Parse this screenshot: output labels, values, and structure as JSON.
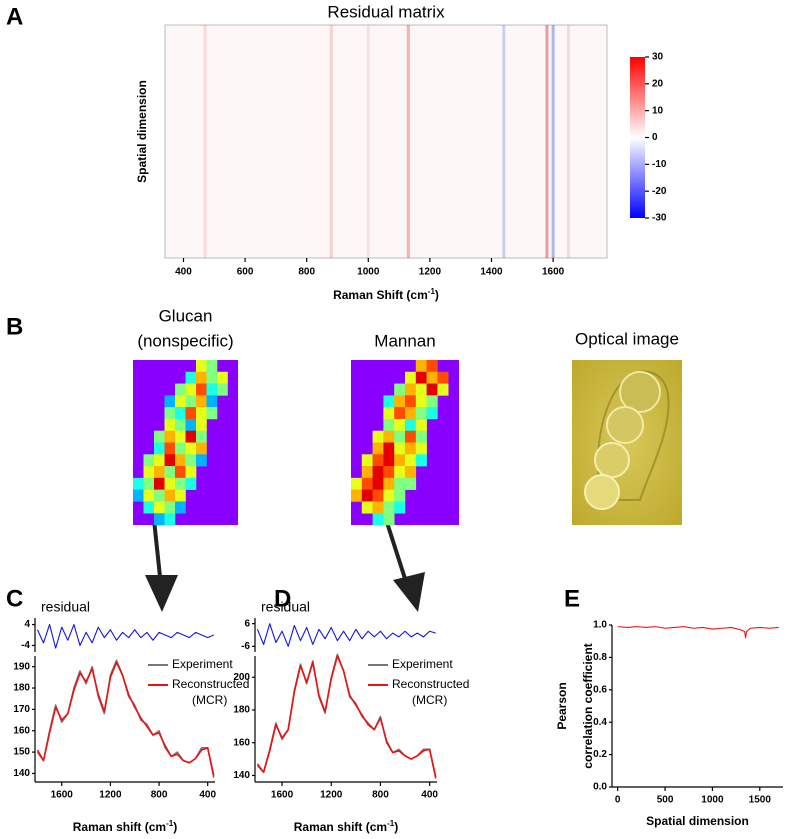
{
  "panel_labels": [
    "A",
    "B",
    "C",
    "D",
    "E"
  ],
  "optical_image": {
    "title": "Optical image"
  },
  "chart_data": [
    {
      "type": "heatmap",
      "title": "Residual matrix",
      "xlabel": [
        "Raman Shift (cm",
        "-1",
        ")"
      ],
      "ylabel": "Spatial dimension",
      "xlim": [
        340,
        1775
      ],
      "xticks": [
        400,
        600,
        800,
        1000,
        1200,
        1400,
        1600
      ],
      "x": [
        470,
        880,
        1000,
        1130,
        1440,
        1580,
        1600,
        1650
      ],
      "values": [
        4,
        5,
        3,
        9,
        -6,
        12,
        -10,
        4
      ],
      "colorbar_lim": [
        -30,
        30
      ],
      "colorbar_ticks": [
        30,
        20,
        10,
        0,
        -10,
        -20,
        -30
      ]
    },
    {
      "type": "pixelmap",
      "title_lines": [
        "Glucan",
        "(nonspecific)"
      ],
      "background": "#8a00ff",
      "values": [
        [
          null,
          null,
          null,
          null,
          null,
          null,
          0.6,
          0.5,
          null,
          null
        ],
        [
          null,
          null,
          null,
          null,
          null,
          0.4,
          0.7,
          0.5,
          0.6,
          null
        ],
        [
          null,
          null,
          null,
          null,
          0.5,
          0.6,
          0.8,
          0.4,
          0.5,
          null
        ],
        [
          null,
          null,
          null,
          0.3,
          0.6,
          0.5,
          0.7,
          0.3,
          null,
          null
        ],
        [
          null,
          null,
          null,
          0.5,
          0.4,
          0.8,
          0.6,
          0.5,
          null,
          null
        ],
        [
          null,
          null,
          null,
          0.6,
          0.5,
          0.3,
          0.6,
          null,
          null,
          null
        ],
        [
          null,
          null,
          0.5,
          0.7,
          0.6,
          0.9,
          0.5,
          null,
          null,
          null
        ],
        [
          null,
          null,
          0.4,
          0.8,
          0.5,
          0.6,
          0.7,
          null,
          null,
          null
        ],
        [
          null,
          0.5,
          0.6,
          0.9,
          0.7,
          0.5,
          0.3,
          null,
          null,
          null
        ],
        [
          null,
          0.6,
          0.7,
          0.5,
          0.8,
          0.6,
          null,
          null,
          null,
          null
        ],
        [
          0.4,
          0.5,
          0.9,
          0.6,
          0.5,
          0.4,
          null,
          null,
          null,
          null
        ],
        [
          0.3,
          0.6,
          0.5,
          0.7,
          0.6,
          null,
          null,
          null,
          null,
          null
        ],
        [
          null,
          0.4,
          0.6,
          0.5,
          0.3,
          null,
          null,
          null,
          null,
          null
        ],
        [
          null,
          null,
          0.3,
          0.4,
          null,
          null,
          null,
          null,
          null,
          null
        ]
      ]
    },
    {
      "type": "pixelmap",
      "title_lines": [
        "Mannan"
      ],
      "background": "#8a00ff",
      "values": [
        [
          null,
          null,
          null,
          null,
          null,
          null,
          0.7,
          0.8,
          null,
          null
        ],
        [
          null,
          null,
          null,
          null,
          null,
          0.6,
          0.9,
          0.7,
          0.8,
          null
        ],
        [
          null,
          null,
          null,
          null,
          0.5,
          0.7,
          0.6,
          0.9,
          0.6,
          null
        ],
        [
          null,
          null,
          null,
          0.4,
          0.7,
          0.8,
          0.6,
          0.5,
          null,
          null
        ],
        [
          null,
          null,
          null,
          0.6,
          0.8,
          0.7,
          0.5,
          0.4,
          null,
          null
        ],
        [
          null,
          null,
          null,
          0.5,
          0.6,
          0.4,
          0.6,
          null,
          null,
          null
        ],
        [
          null,
          null,
          0.6,
          0.7,
          0.5,
          0.8,
          0.5,
          null,
          null,
          null
        ],
        [
          null,
          null,
          0.7,
          0.9,
          0.6,
          0.7,
          0.6,
          null,
          null,
          null
        ],
        [
          null,
          0.6,
          0.8,
          0.9,
          0.7,
          0.6,
          0.4,
          null,
          null,
          null
        ],
        [
          null,
          0.7,
          0.9,
          0.8,
          0.6,
          0.7,
          null,
          null,
          null,
          null
        ],
        [
          0.6,
          0.8,
          0.9,
          0.7,
          0.5,
          0.5,
          null,
          null,
          null,
          null
        ],
        [
          0.7,
          0.9,
          0.8,
          0.6,
          0.5,
          null,
          null,
          null,
          null,
          null
        ],
        [
          null,
          0.6,
          0.7,
          0.5,
          0.4,
          null,
          null,
          null,
          null,
          null
        ],
        [
          null,
          null,
          0.4,
          0.5,
          null,
          null,
          null,
          null,
          null,
          null
        ]
      ]
    },
    {
      "type": "line",
      "title": "residual",
      "xlim": [
        1820,
        340
      ],
      "ylim": [
        -6.5,
        6.5
      ],
      "yticks": [
        4,
        -4
      ],
      "x": [
        1800,
        1750,
        1700,
        1650,
        1600,
        1550,
        1500,
        1450,
        1400,
        1350,
        1300,
        1250,
        1200,
        1150,
        1100,
        1050,
        1000,
        950,
        900,
        850,
        800,
        750,
        700,
        650,
        600,
        550,
        500,
        450,
        400,
        350
      ],
      "series": [
        {
          "color": "#1414e6",
          "values": [
            2,
            -3,
            4,
            -5,
            3,
            -2,
            4,
            -4,
            1,
            -3,
            3,
            -1,
            2,
            -2,
            1,
            -1,
            2,
            -1,
            1,
            -2,
            1,
            0,
            -1,
            1,
            0,
            -1,
            1,
            0,
            -1,
            0
          ]
        }
      ]
    },
    {
      "type": "line",
      "xlabel": [
        "Raman shift (cm",
        "-1",
        ")"
      ],
      "xlim": [
        1820,
        340
      ],
      "ylim": [
        136,
        195
      ],
      "xticks": [
        1600,
        1200,
        800,
        400
      ],
      "yticks": [
        190,
        180,
        170,
        160,
        150,
        140
      ],
      "legend": true,
      "x": [
        1800,
        1750,
        1700,
        1650,
        1600,
        1550,
        1500,
        1450,
        1400,
        1350,
        1300,
        1250,
        1200,
        1150,
        1100,
        1050,
        1000,
        950,
        900,
        850,
        800,
        750,
        700,
        650,
        600,
        550,
        500,
        450,
        400,
        350
      ],
      "series": [
        {
          "name": "Experiment",
          "color": "#777777",
          "values": [
            150,
            146,
            160,
            172,
            164,
            168,
            180,
            188,
            182,
            190,
            176,
            168,
            186,
            193,
            186,
            176,
            172,
            165,
            163,
            158,
            160,
            152,
            148,
            150,
            146,
            145,
            147,
            152,
            152,
            138
          ]
        },
        {
          "name": "Reconstructed",
          "name_line2": "(MCR)",
          "color": "#ee1111",
          "values": [
            151,
            146,
            159,
            171,
            165,
            168,
            179,
            187,
            183,
            189,
            177,
            169,
            185,
            192,
            186,
            177,
            171,
            166,
            162,
            158,
            159,
            153,
            148,
            149,
            146,
            145,
            147,
            151,
            152,
            139
          ]
        }
      ]
    },
    {
      "type": "line",
      "title": "residual",
      "xlim": [
        1820,
        340
      ],
      "ylim": [
        -9,
        9
      ],
      "yticks": [
        6,
        -6
      ],
      "x": [
        1800,
        1750,
        1700,
        1650,
        1600,
        1550,
        1500,
        1450,
        1400,
        1350,
        1300,
        1250,
        1200,
        1150,
        1100,
        1050,
        1000,
        950,
        900,
        850,
        800,
        750,
        700,
        650,
        600,
        550,
        500,
        450,
        400,
        350
      ],
      "series": [
        {
          "color": "#1414e6",
          "values": [
            3,
            -5,
            6,
            -4,
            2,
            -6,
            5,
            -3,
            4,
            -5,
            3,
            -2,
            4,
            -3,
            2,
            -3,
            3,
            -2,
            2,
            -1,
            2,
            -2,
            1,
            -1,
            2,
            -1,
            1,
            -1,
            2,
            1
          ]
        }
      ]
    },
    {
      "type": "line",
      "xlabel": [
        "Raman shift (cm",
        "-1",
        ")"
      ],
      "xlim": [
        1820,
        340
      ],
      "ylim": [
        136,
        213
      ],
      "xticks": [
        1600,
        1200,
        800,
        400
      ],
      "yticks": [
        200,
        180,
        160,
        140
      ],
      "legend": true,
      "x": [
        1800,
        1750,
        1700,
        1650,
        1600,
        1550,
        1500,
        1450,
        1400,
        1350,
        1300,
        1250,
        1200,
        1150,
        1100,
        1050,
        1000,
        950,
        900,
        850,
        800,
        750,
        700,
        650,
        600,
        550,
        500,
        450,
        400,
        350
      ],
      "series": [
        {
          "name": "Experiment",
          "color": "#777777",
          "values": [
            146,
            142,
            156,
            172,
            162,
            168,
            192,
            208,
            196,
            210,
            188,
            178,
            200,
            214,
            204,
            188,
            184,
            176,
            172,
            168,
            176,
            160,
            154,
            156,
            152,
            150,
            152,
            156,
            156,
            138
          ]
        },
        {
          "name": "Reconstructed",
          "name_line2": "(MCR)",
          "color": "#ee1111",
          "values": [
            147,
            142,
            155,
            171,
            163,
            168,
            191,
            207,
            197,
            209,
            189,
            179,
            199,
            213,
            204,
            189,
            183,
            177,
            171,
            168,
            175,
            161,
            154,
            155,
            152,
            150,
            152,
            155,
            156,
            139
          ]
        }
      ]
    },
    {
      "type": "line",
      "xlabel": [
        "Spatial dimension"
      ],
      "ylabel_lines": [
        "Pearson",
        "correlation coefficient"
      ],
      "xlim": [
        -60,
        1745
      ],
      "ylim": [
        0,
        1
      ],
      "xticks": [
        0,
        500,
        1000,
        1500
      ],
      "yticks": [
        {
          "value": 0,
          "label": "0.0"
        },
        0.2,
        0.4,
        0.6,
        0.8,
        {
          "value": 1,
          "label": "1.0"
        }
      ],
      "x": [
        0,
        100,
        200,
        300,
        400,
        500,
        600,
        700,
        800,
        900,
        1000,
        1100,
        1200,
        1300,
        1340,
        1350,
        1360,
        1400,
        1500,
        1600,
        1700
      ],
      "series": [
        {
          "color": "#ee1111",
          "values": [
            0.99,
            0.985,
            0.99,
            0.985,
            0.99,
            0.98,
            0.985,
            0.99,
            0.98,
            0.985,
            0.975,
            0.98,
            0.985,
            0.97,
            0.96,
            0.92,
            0.96,
            0.98,
            0.985,
            0.98,
            0.985
          ]
        }
      ]
    }
  ]
}
